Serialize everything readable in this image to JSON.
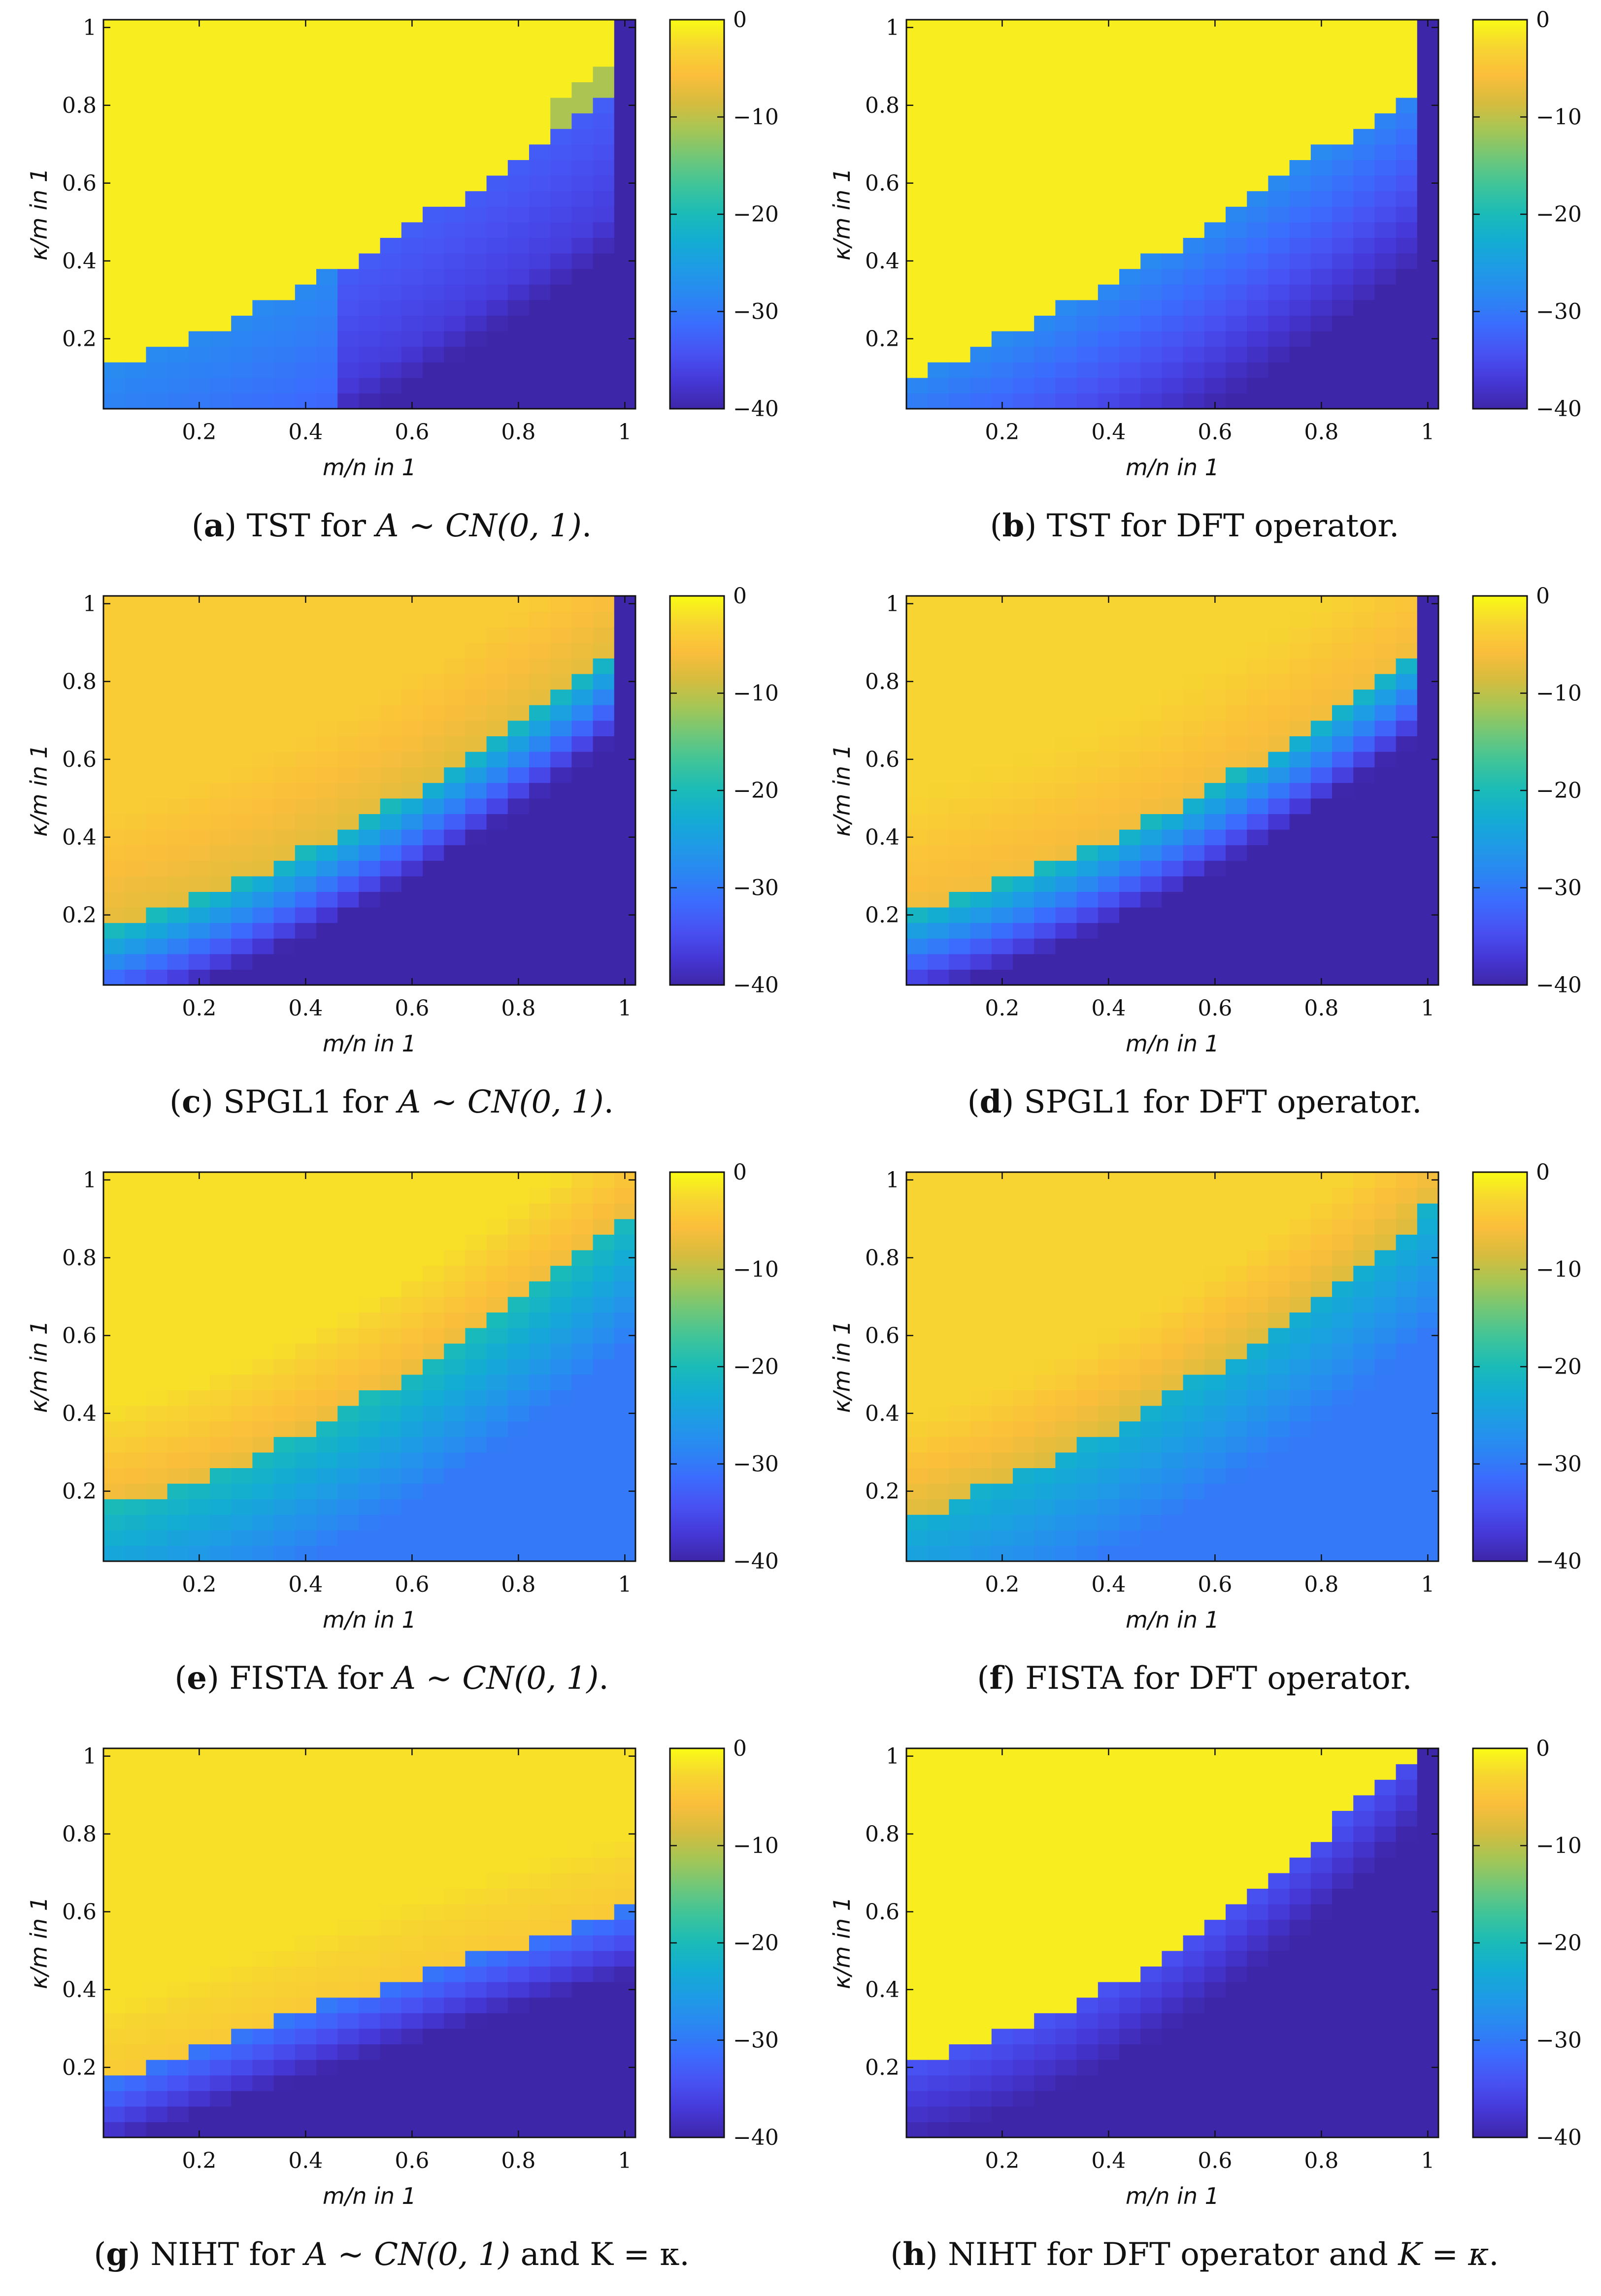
{
  "colormap": [
    "#3e26a8",
    "#4538d7",
    "#4852f3",
    "#3b6cfd",
    "#2b86f3",
    "#1f9ae6",
    "#13acd3",
    "#1abbb8",
    "#3dc49b",
    "#6ec77a",
    "#a4c656",
    "#d6bc3e",
    "#fbbe3b",
    "#f7d531",
    "#f9fb15"
  ],
  "chart_data": [
    {
      "id": "a",
      "type": "heatmap",
      "algorithm": "TST",
      "operator": "gaussian",
      "caption": {
        "letter": "a",
        "prefix": ") TST for ",
        "math": "A ~ CN(0, 1)",
        "suffix": "."
      },
      "xlabel": "m/n in 1",
      "ylabel": "κ/m in 1",
      "xticks": [
        "0.2",
        "0.4",
        "0.6",
        "0.8",
        "1"
      ],
      "yticks": [
        "0.2",
        "0.4",
        "0.6",
        "0.8",
        "1"
      ],
      "colorbar_ticks": [
        "0",
        "−10",
        "−20",
        "−30",
        "−40"
      ],
      "clim": [
        -40,
        0
      ],
      "xlim": [
        0.02,
        1.02
      ],
      "ylim": [
        0.02,
        1.02
      ]
    },
    {
      "id": "b",
      "type": "heatmap",
      "algorithm": "TST",
      "operator": "dft",
      "caption": {
        "letter": "b",
        "prefix": ") TST for DFT operator.",
        "math": "",
        "suffix": ""
      },
      "xlabel": "m/n in 1",
      "ylabel": "κ/m in 1",
      "xticks": [
        "0.2",
        "0.4",
        "0.6",
        "0.8",
        "1"
      ],
      "yticks": [
        "0.2",
        "0.4",
        "0.6",
        "0.8",
        "1"
      ],
      "colorbar_ticks": [
        "0",
        "−10",
        "−20",
        "−30",
        "−40"
      ],
      "clim": [
        -40,
        0
      ],
      "xlim": [
        0.02,
        1.02
      ],
      "ylim": [
        0.02,
        1.02
      ]
    },
    {
      "id": "c",
      "type": "heatmap",
      "algorithm": "SPGL1",
      "operator": "gaussian",
      "caption": {
        "letter": "c",
        "prefix": ") SPGL1 for ",
        "math": "A ~ CN(0, 1)",
        "suffix": "."
      },
      "xlabel": "m/n in 1",
      "ylabel": "κ/m in 1",
      "xticks": [
        "0.2",
        "0.4",
        "0.6",
        "0.8",
        "1"
      ],
      "yticks": [
        "0.2",
        "0.4",
        "0.6",
        "0.8",
        "1"
      ],
      "colorbar_ticks": [
        "0",
        "−10",
        "−20",
        "−30",
        "−40"
      ],
      "clim": [
        -40,
        0
      ],
      "xlim": [
        0.02,
        1.02
      ],
      "ylim": [
        0.02,
        1.02
      ]
    },
    {
      "id": "d",
      "type": "heatmap",
      "algorithm": "SPGL1",
      "operator": "dft",
      "caption": {
        "letter": "d",
        "prefix": ") SPGL1 for DFT operator.",
        "math": "",
        "suffix": ""
      },
      "xlabel": "m/n in 1",
      "ylabel": "κ/m in 1",
      "xticks": [
        "0.2",
        "0.4",
        "0.6",
        "0.8",
        "1"
      ],
      "yticks": [
        "0.2",
        "0.4",
        "0.6",
        "0.8",
        "1"
      ],
      "colorbar_ticks": [
        "0",
        "−10",
        "−20",
        "−30",
        "−40"
      ],
      "clim": [
        -40,
        0
      ],
      "xlim": [
        0.02,
        1.02
      ],
      "ylim": [
        0.02,
        1.02
      ]
    },
    {
      "id": "e",
      "type": "heatmap",
      "algorithm": "FISTA",
      "operator": "gaussian",
      "caption": {
        "letter": "e",
        "prefix": ") FISTA for ",
        "math": "A ~ CN(0, 1)",
        "suffix": "."
      },
      "xlabel": "m/n in 1",
      "ylabel": "κ/m in 1",
      "xticks": [
        "0.2",
        "0.4",
        "0.6",
        "0.8",
        "1"
      ],
      "yticks": [
        "0.2",
        "0.4",
        "0.6",
        "0.8",
        "1"
      ],
      "colorbar_ticks": [
        "0",
        "−10",
        "−20",
        "−30",
        "−40"
      ],
      "clim": [
        -40,
        0
      ],
      "xlim": [
        0.02,
        1.02
      ],
      "ylim": [
        0.02,
        1.02
      ]
    },
    {
      "id": "f",
      "type": "heatmap",
      "algorithm": "FISTA",
      "operator": "dft",
      "caption": {
        "letter": "f",
        "prefix": ") FISTA for DFT operator.",
        "math": "",
        "suffix": ""
      },
      "xlabel": "m/n in 1",
      "ylabel": "κ/m in 1",
      "xticks": [
        "0.2",
        "0.4",
        "0.6",
        "0.8",
        "1"
      ],
      "yticks": [
        "0.2",
        "0.4",
        "0.6",
        "0.8",
        "1"
      ],
      "colorbar_ticks": [
        "0",
        "−10",
        "−20",
        "−30",
        "−40"
      ],
      "clim": [
        -40,
        0
      ],
      "xlim": [
        0.02,
        1.02
      ],
      "ylim": [
        0.02,
        1.02
      ]
    },
    {
      "id": "g",
      "type": "heatmap",
      "algorithm": "NIHT",
      "operator": "gaussian",
      "caption": {
        "letter": "g",
        "prefix": ") NIHT for ",
        "math": "A ~ CN(0, 1)",
        "suffix": " and K = κ."
      },
      "xlabel": "m/n in 1",
      "ylabel": "κ/m in 1",
      "xticks": [
        "0.2",
        "0.4",
        "0.6",
        "0.8",
        "1"
      ],
      "yticks": [
        "0.2",
        "0.4",
        "0.6",
        "0.8",
        "1"
      ],
      "colorbar_ticks": [
        "0",
        "−10",
        "−20",
        "−30",
        "−40"
      ],
      "clim": [
        -40,
        0
      ],
      "xlim": [
        0.02,
        1.02
      ],
      "ylim": [
        0.02,
        1.02
      ]
    },
    {
      "id": "h",
      "type": "heatmap",
      "algorithm": "NIHT",
      "operator": "dft",
      "caption": {
        "letter": "h",
        "prefix": ") NIHT for DFT operator and ",
        "math": "K = κ",
        "suffix": "."
      },
      "xlabel": "m/n in 1",
      "ylabel": "κ/m in 1",
      "xticks": [
        "0.2",
        "0.4",
        "0.6",
        "0.8",
        "1"
      ],
      "yticks": [
        "0.2",
        "0.4",
        "0.6",
        "0.8",
        "1"
      ],
      "colorbar_ticks": [
        "0",
        "−10",
        "−20",
        "−30",
        "−40"
      ],
      "clim": [
        -40,
        0
      ],
      "xlim": [
        0.02,
        1.02
      ],
      "ylim": [
        0.02,
        1.02
      ]
    }
  ]
}
